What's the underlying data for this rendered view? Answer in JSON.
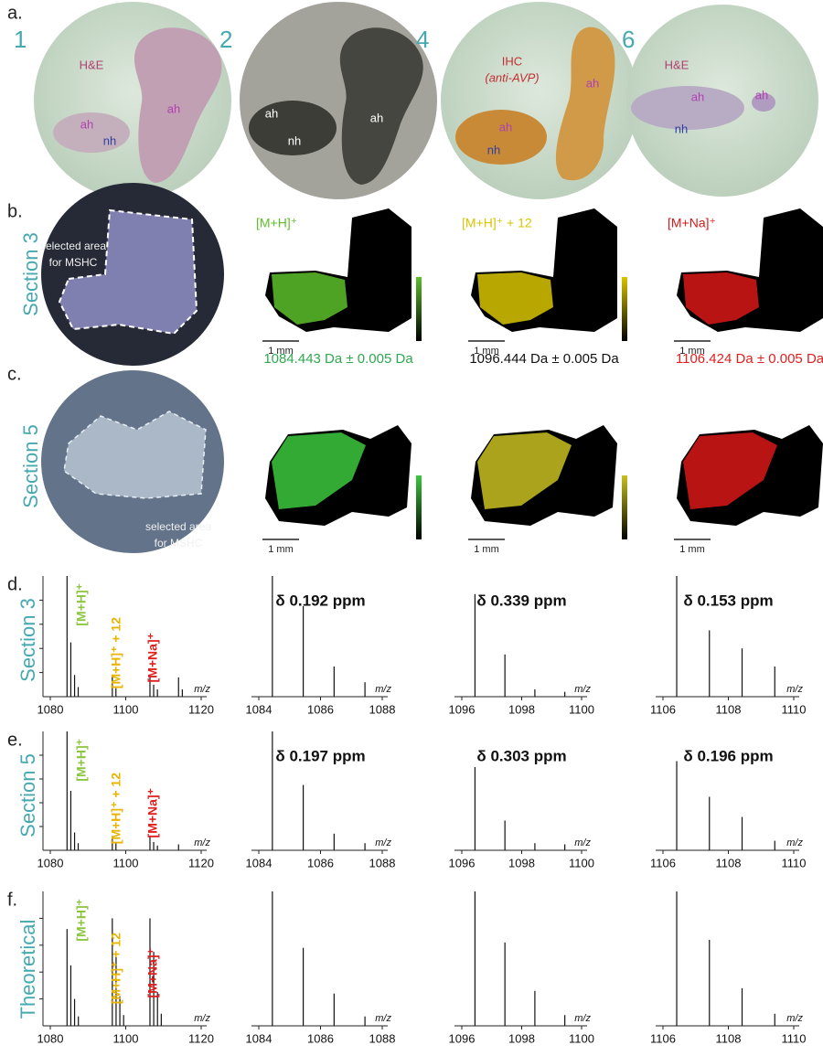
{
  "panel_a": {
    "label": "a.",
    "sections": [
      {
        "number": "1",
        "labels": [
          "H&E",
          "ah",
          "ah",
          "nh"
        ]
      },
      {
        "number": "2",
        "labels": [
          "ah",
          "nh",
          "ah"
        ]
      },
      {
        "number": "4",
        "labels": [
          "IHC",
          "(anti-AVP)",
          "ah",
          "ah",
          "nh"
        ]
      },
      {
        "number": "6",
        "labels": [
          "H&E",
          "ah",
          "ah",
          "nh"
        ]
      }
    ]
  },
  "panel_b": {
    "label": "b.",
    "section": "Section 3",
    "overlay": [
      "selected area",
      "for MSHC"
    ],
    "images": [
      {
        "title": "[M+H]⁺",
        "color": "#5cc02a",
        "scale": "1 mm",
        "mass": "1084.443 Da ± 0.005 Da",
        "mass_color": "#2fa84f"
      },
      {
        "title": "[M+H]⁺ + 12",
        "color": "#d8c400",
        "scale": "1 mm",
        "mass": "1096.444 Da ± 0.005 Da",
        "mass_color": "#111111"
      },
      {
        "title": "[M+Na]⁺",
        "color": "#d81818",
        "scale": "1 mm",
        "mass": "1106.424 Da ± 0.005 Da",
        "mass_color": "#e02020"
      }
    ]
  },
  "panel_c": {
    "label": "c.",
    "section": "Section 5",
    "overlay": [
      "selected area",
      "for MSHC"
    ],
    "images": [
      {
        "color": "#3cc83c",
        "scale": "1 mm"
      },
      {
        "color": "#c8c020",
        "scale": "1 mm"
      },
      {
        "color": "#d81818",
        "scale": "1 mm"
      }
    ]
  },
  "spectra_rows": [
    {
      "label": "d.",
      "section": "Section 3",
      "spectra": [
        {
          "xlim": [
            1080,
            1120
          ],
          "xticks": [
            1080,
            1100,
            1120
          ],
          "x_label": "m/z",
          "peaks_x": [
            1084.44,
            1085.44,
            1086.44,
            1087.4,
            1096.44,
            1097.4,
            1106.42,
            1107.4,
            1108.4,
            1114.0,
            1115.0
          ],
          "peaks_y": [
            100,
            45,
            18,
            8,
            17,
            7,
            17,
            10,
            6,
            16,
            6
          ],
          "annotations": [
            "[M+H]⁺",
            "[M+H]⁺ + 12",
            "[M+Na]⁺"
          ]
        },
        {
          "xlim": [
            1084,
            1088
          ],
          "xticks": [
            1084,
            1086,
            1088
          ],
          "x_label": "m/z",
          "delta": "δ 0.192 ppm",
          "peaks_x": [
            1084.44,
            1085.44,
            1086.44,
            1087.44
          ],
          "peaks_y": [
            100,
            75,
            25,
            12
          ]
        },
        {
          "xlim": [
            1096,
            1100
          ],
          "xticks": [
            1096,
            1098,
            1100
          ],
          "x_label": "m/z",
          "delta": "δ 0.339 ppm",
          "peaks_x": [
            1096.44,
            1097.44,
            1098.44,
            1099.44
          ],
          "peaks_y": [
            85,
            35,
            6,
            4
          ]
        },
        {
          "xlim": [
            1106,
            1110
          ],
          "xticks": [
            1106,
            1108,
            1110
          ],
          "x_label": "m/z",
          "delta": "δ 0.153 ppm",
          "peaks_x": [
            1106.42,
            1107.42,
            1108.42,
            1109.42
          ],
          "peaks_y": [
            100,
            55,
            40,
            25
          ]
        }
      ]
    },
    {
      "label": "e.",
      "section": "Section 5",
      "spectra": [
        {
          "xlim": [
            1080,
            1120
          ],
          "xticks": [
            1080,
            1100,
            1120
          ],
          "x_label": "m/z",
          "peaks_x": [
            1084.44,
            1085.44,
            1086.44,
            1087.4,
            1096.44,
            1097.4,
            1106.42,
            1107.4,
            1108.4,
            1114.0
          ],
          "peaks_y": [
            100,
            50,
            15,
            6,
            12,
            6,
            12,
            7,
            4,
            5
          ],
          "annotations": [
            "[M+H]⁺",
            "[M+H]⁺ + 12",
            "[M+Na]⁺"
          ]
        },
        {
          "xlim": [
            1084,
            1088
          ],
          "xticks": [
            1084,
            1086,
            1088
          ],
          "x_label": "m/z",
          "delta": "δ 0.197 ppm",
          "peaks_x": [
            1084.44,
            1085.44,
            1086.44,
            1087.44
          ],
          "peaks_y": [
            100,
            55,
            14,
            6
          ]
        },
        {
          "xlim": [
            1096,
            1100
          ],
          "xticks": [
            1096,
            1098,
            1100
          ],
          "x_label": "m/z",
          "delta": "δ 0.303 ppm",
          "peaks_x": [
            1096.44,
            1097.44,
            1098.44,
            1099.44
          ],
          "peaks_y": [
            70,
            25,
            6,
            5
          ]
        },
        {
          "xlim": [
            1106,
            1110
          ],
          "xticks": [
            1106,
            1108,
            1110
          ],
          "x_label": "m/z",
          "delta": "δ 0.196 ppm",
          "peaks_x": [
            1106.42,
            1107.42,
            1108.42,
            1109.42
          ],
          "peaks_y": [
            75,
            45,
            28,
            8
          ]
        }
      ]
    },
    {
      "label": "f.",
      "section": "Theoretical",
      "spectra": [
        {
          "xlim": [
            1080,
            1120
          ],
          "xticks": [
            1080,
            1100,
            1120
          ],
          "x_label": "m/z",
          "peaks_x": [
            1084.44,
            1085.44,
            1086.44,
            1087.44,
            1096.44,
            1097.44,
            1098.44,
            1099.44,
            1106.42,
            1107.42,
            1108.42,
            1109.42
          ],
          "peaks_y": [
            72,
            45,
            20,
            7,
            80,
            52,
            22,
            8,
            80,
            55,
            25,
            9
          ],
          "annotations": [
            "[M+H]⁺",
            "[M+H]⁺ + 12",
            "[M+Na]⁺"
          ]
        },
        {
          "xlim": [
            1084,
            1088
          ],
          "xticks": [
            1084,
            1086,
            1088
          ],
          "x_label": "m/z",
          "peaks_x": [
            1084.44,
            1085.44,
            1086.44,
            1087.44
          ],
          "peaks_y": [
            100,
            58,
            24,
            7
          ]
        },
        {
          "xlim": [
            1096,
            1100
          ],
          "xticks": [
            1096,
            1098,
            1100
          ],
          "x_label": "m/z",
          "peaks_x": [
            1096.44,
            1097.44,
            1098.44,
            1099.44
          ],
          "peaks_y": [
            100,
            62,
            26,
            8
          ]
        },
        {
          "xlim": [
            1106,
            1110
          ],
          "xticks": [
            1106,
            1108,
            1110
          ],
          "x_label": "m/z",
          "peaks_x": [
            1106.42,
            1107.42,
            1108.42,
            1109.42
          ],
          "peaks_y": [
            100,
            64,
            28,
            9
          ]
        }
      ]
    }
  ]
}
